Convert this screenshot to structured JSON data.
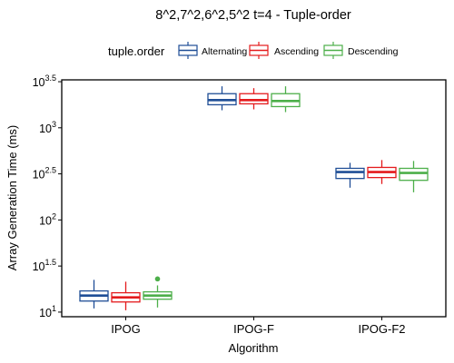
{
  "chart_data": {
    "type": "box",
    "title": "8^2,7^2,6^2,5^2 t=4 - Tuple-order",
    "xlabel": "Algorithm",
    "ylabel": "Array Generation Time (ms)",
    "y_scale": "log10",
    "ylim": [
      0.95,
      3.52
    ],
    "grid": false,
    "legend": {
      "title": "tuple.order",
      "position": "top",
      "entries": [
        "Alternating",
        "Ascending",
        "Descending"
      ]
    },
    "categories": [
      "IPOG",
      "IPOG-F",
      "IPOG-F2"
    ],
    "y_ticks": [
      {
        "value": 1,
        "base": "10",
        "exp": "1"
      },
      {
        "value": 1.5,
        "base": "10",
        "exp": "1.5"
      },
      {
        "value": 2,
        "base": "10",
        "exp": "2"
      },
      {
        "value": 2.5,
        "base": "10",
        "exp": "2.5"
      },
      {
        "value": 3,
        "base": "10",
        "exp": "3"
      },
      {
        "value": 3.5,
        "base": "10",
        "exp": "3.5"
      }
    ],
    "series": [
      {
        "name": "Alternating",
        "color": "#1f4e96",
        "boxes": [
          {
            "category": "IPOG",
            "lower_whisker": 1.04,
            "q1": 1.12,
            "median": 1.18,
            "q3": 1.23,
            "upper_whisker": 1.35,
            "outliers": []
          },
          {
            "category": "IPOG-F",
            "lower_whisker": 3.19,
            "q1": 3.25,
            "median": 3.3,
            "q3": 3.37,
            "upper_whisker": 3.45,
            "outliers": []
          },
          {
            "category": "IPOG-F2",
            "lower_whisker": 2.35,
            "q1": 2.45,
            "median": 2.52,
            "q3": 2.56,
            "upper_whisker": 2.62,
            "outliers": []
          }
        ]
      },
      {
        "name": "Ascending",
        "color": "#e41a1c",
        "boxes": [
          {
            "category": "IPOG",
            "lower_whisker": 1.02,
            "q1": 1.11,
            "median": 1.16,
            "q3": 1.21,
            "upper_whisker": 1.33,
            "outliers": []
          },
          {
            "category": "IPOG-F",
            "lower_whisker": 3.2,
            "q1": 3.26,
            "median": 3.3,
            "q3": 3.37,
            "upper_whisker": 3.43,
            "outliers": []
          },
          {
            "category": "IPOG-F2",
            "lower_whisker": 2.39,
            "q1": 2.46,
            "median": 2.52,
            "q3": 2.57,
            "upper_whisker": 2.65,
            "outliers": []
          }
        ]
      },
      {
        "name": "Descending",
        "color": "#4daf4a",
        "boxes": [
          {
            "category": "IPOG",
            "lower_whisker": 1.05,
            "q1": 1.14,
            "median": 1.18,
            "q3": 1.22,
            "upper_whisker": 1.29,
            "outliers": [
              1.36
            ]
          },
          {
            "category": "IPOG-F",
            "lower_whisker": 3.17,
            "q1": 3.23,
            "median": 3.29,
            "q3": 3.37,
            "upper_whisker": 3.45,
            "outliers": []
          },
          {
            "category": "IPOG-F2",
            "lower_whisker": 2.3,
            "q1": 2.43,
            "median": 2.51,
            "q3": 2.56,
            "upper_whisker": 2.64,
            "outliers": []
          }
        ]
      }
    ]
  }
}
